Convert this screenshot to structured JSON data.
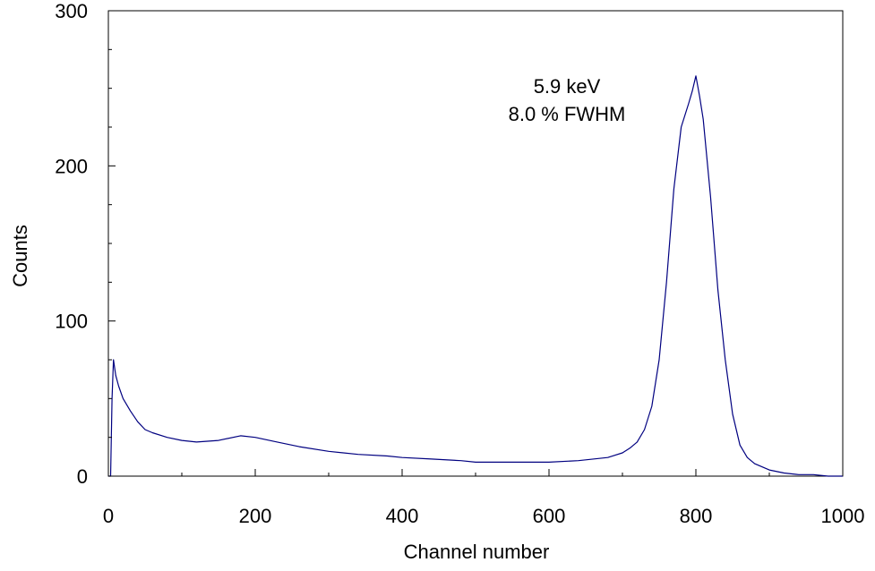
{
  "chart_data": {
    "type": "line",
    "title": "",
    "xlabel": "Channel number",
    "ylabel": "Counts",
    "xlim": [
      0,
      1000
    ],
    "ylim": [
      0,
      300
    ],
    "x_major_ticks": [
      0,
      200,
      400,
      600,
      800,
      1000
    ],
    "x_tick_labels": [
      "0",
      "200",
      "400",
      "600",
      "800",
      "1000"
    ],
    "y_major_ticks": [
      0,
      100,
      200,
      300
    ],
    "y_tick_labels": [
      "0",
      "100",
      "200",
      "300"
    ],
    "grid": false,
    "legend": "none",
    "annotations": [
      "5.9 keV",
      "8.0 % FWHM"
    ],
    "line_color": "#000080",
    "series": [
      {
        "x": [
          0,
          3,
          5,
          7,
          10,
          14,
          20,
          30,
          40,
          50,
          60,
          80,
          100,
          120,
          150,
          180,
          200,
          230,
          260,
          300,
          340,
          380,
          400,
          440,
          480,
          500,
          540,
          580,
          600,
          640,
          680,
          700,
          710,
          720,
          730,
          740,
          750,
          760,
          770,
          780,
          790,
          795,
          800,
          805,
          810,
          820,
          830,
          840,
          850,
          860,
          870,
          880,
          890,
          900,
          920,
          940,
          960,
          980,
          1000
        ],
        "y": [
          0,
          0,
          50,
          75,
          65,
          58,
          50,
          42,
          35,
          30,
          28,
          25,
          23,
          22,
          23,
          26,
          25,
          22,
          19,
          16,
          14,
          13,
          12,
          11,
          10,
          9,
          9,
          9,
          9,
          10,
          12,
          15,
          18,
          22,
          30,
          45,
          75,
          125,
          185,
          225,
          240,
          248,
          258,
          245,
          230,
          180,
          120,
          75,
          40,
          20,
          12,
          8,
          6,
          4,
          2,
          1,
          1,
          0,
          0
        ]
      }
    ]
  }
}
